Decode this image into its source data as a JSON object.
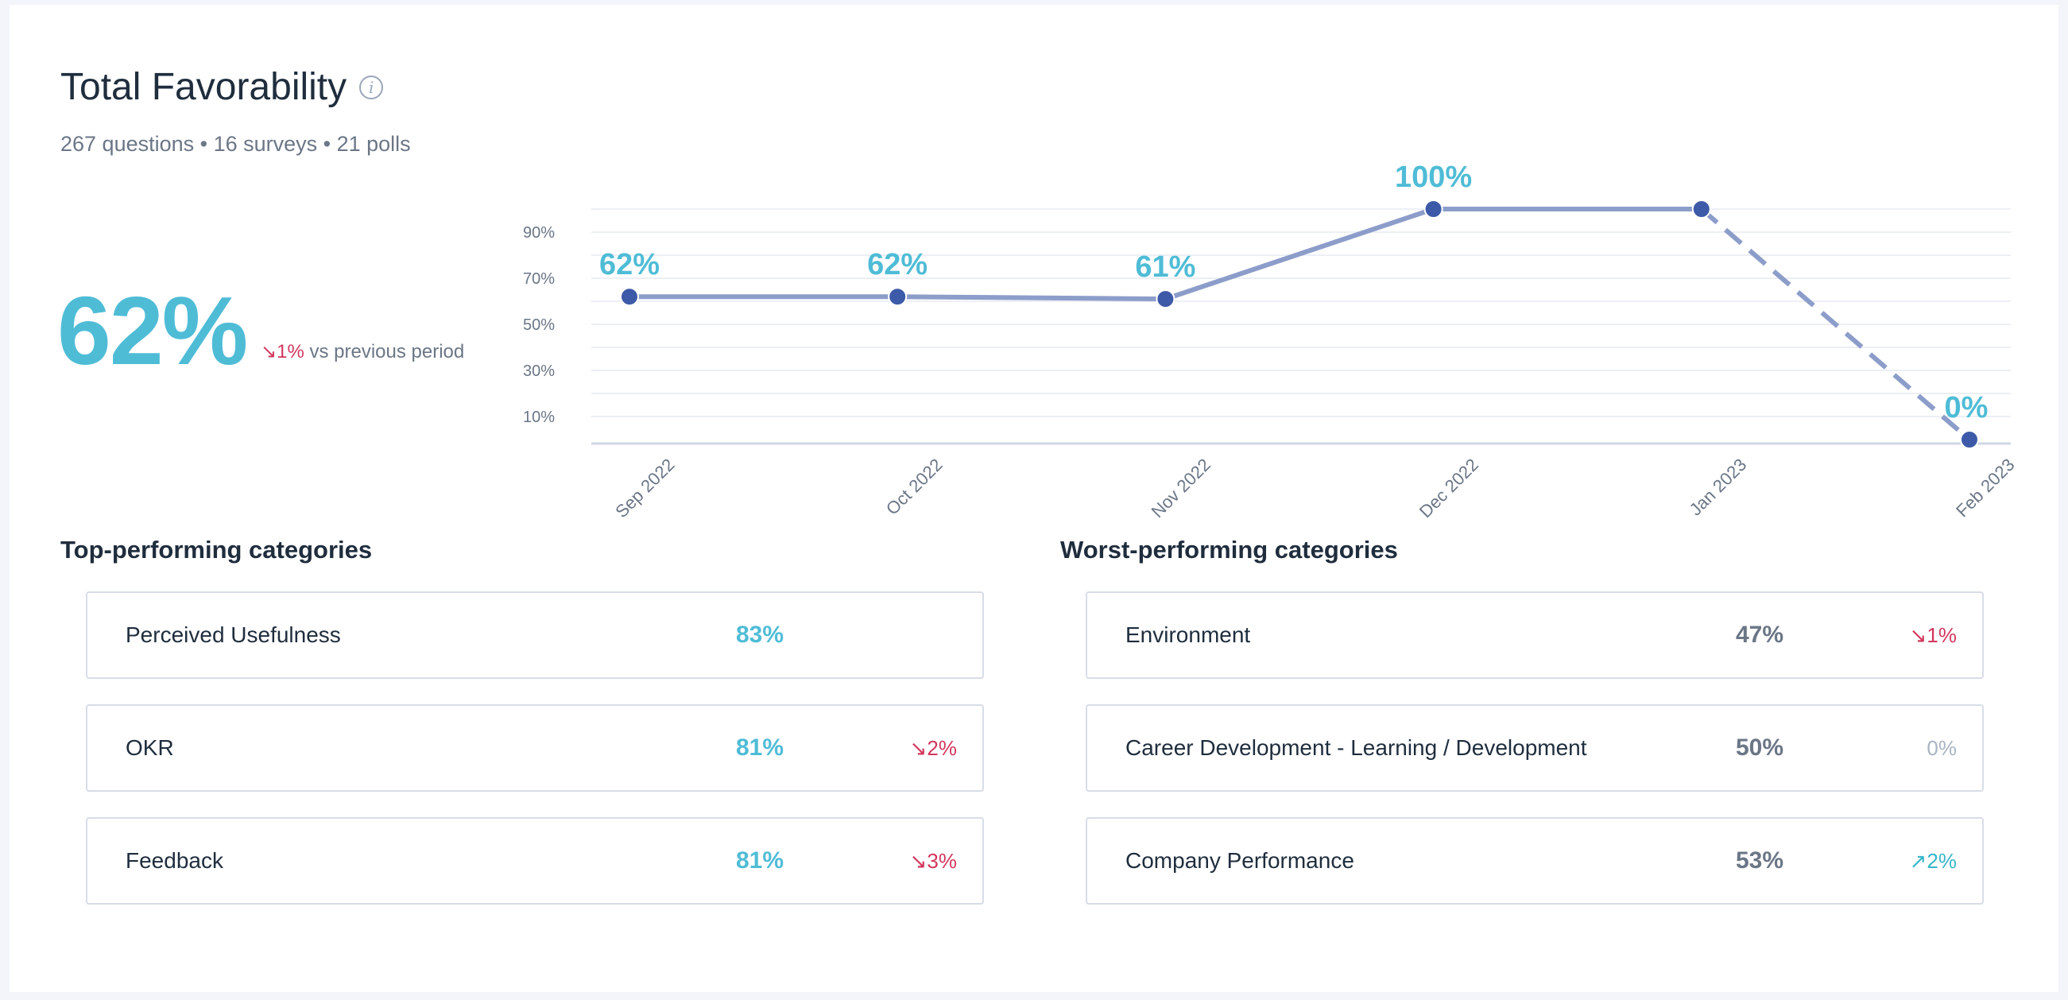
{
  "header": {
    "title": "Total Favorability",
    "info_icon": "info-icon",
    "subtitle": "267 questions • 16 surveys • 21 polls"
  },
  "summary": {
    "value": "62%",
    "delta_arrow": "↘",
    "delta": "1%",
    "delta_label": "vs previous period"
  },
  "chart_data": {
    "type": "line",
    "x": [
      "Sep 2022",
      "Oct 2022",
      "Nov 2022",
      "Dec 2022",
      "Jan 2023",
      "Feb 2023"
    ],
    "values": [
      62,
      62,
      61,
      100,
      100,
      0
    ],
    "data_labels": [
      "62%",
      "62%",
      "61%",
      "100%",
      "",
      "0%"
    ],
    "dashed_from_index": 4,
    "yticks": [
      "90%",
      "70%",
      "50%",
      "30%",
      "10%"
    ],
    "ytick_values": [
      90,
      70,
      50,
      30,
      10
    ],
    "ylim": [
      0,
      100
    ],
    "grid": true,
    "colors": {
      "line": "#8c9dca",
      "point": "#3d5aa8",
      "label": "#4fbcd6"
    }
  },
  "top": {
    "title": "Top-performing categories",
    "items": [
      {
        "name": "Perceived Usefulness",
        "value": "83%",
        "delta_arrow": "",
        "delta": ""
      },
      {
        "name": "OKR",
        "value": "81%",
        "delta_arrow": "↘",
        "delta": "2%"
      },
      {
        "name": "Feedback",
        "value": "81%",
        "delta_arrow": "↘",
        "delta": "3%"
      }
    ]
  },
  "worst": {
    "title": "Worst-performing categories",
    "items": [
      {
        "name": "Environment",
        "value": "47%",
        "delta_arrow": "↘",
        "delta": "1%"
      },
      {
        "name": "Career Development - Learning / Development",
        "value": "50%",
        "delta_arrow": "",
        "delta": "0%"
      },
      {
        "name": "Company Performance",
        "value": "53%",
        "delta_arrow": "↗",
        "delta": "2%"
      }
    ]
  }
}
